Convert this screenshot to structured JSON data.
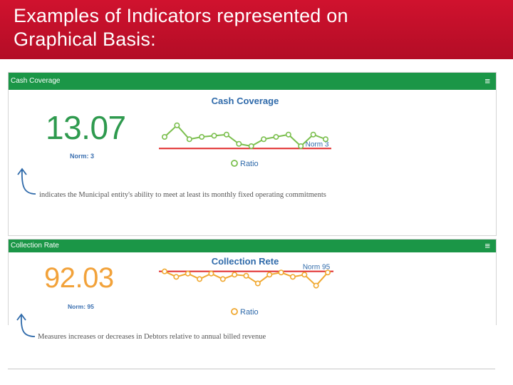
{
  "slide": {
    "title_line1": "Examples of Indicators represented on",
    "title_line2": "Graphical Basis:"
  },
  "colors": {
    "title_bg": "#c8102e",
    "panel_header": "#1b9647",
    "cash_value": "#2e9a4e",
    "collection_value": "#f2a23a",
    "norm_line": "#e02a2a",
    "cash_series": "#7bbf4e",
    "collection_series": "#f0a830",
    "label_blue": "#2f6aaa"
  },
  "panels": [
    {
      "header": "Cash Coverage",
      "menu_icon": "hamburger-icon",
      "value": "13.07",
      "norm": "Norm: 3",
      "description": "indicates the Municipal entity's ability to meet at least its monthly fixed operating commitments"
    },
    {
      "header": "Collection Rate",
      "menu_icon": "hamburger-icon",
      "value": "92.03",
      "norm": "Norm: 95",
      "description": "Measures increases or decreases in Debtors relative to annual billed revenue"
    }
  ],
  "chart_data": [
    {
      "type": "line",
      "title": "Cash Coverage",
      "series": [
        {
          "name": "Ratio",
          "values": [
            8,
            13,
            7,
            8,
            8.5,
            9,
            5,
            4,
            7,
            8,
            9,
            4,
            9,
            7
          ]
        }
      ],
      "norm_line": {
        "label": "Norm 3",
        "value": 3
      },
      "ylim": [
        0,
        16
      ],
      "grid": false,
      "legend": "bottom"
    },
    {
      "type": "line",
      "title": "Collection Rete",
      "series": [
        {
          "name": "Ratio",
          "values": [
            95,
            90,
            93,
            88,
            93,
            88,
            92,
            91,
            84,
            92,
            94,
            90,
            92,
            82,
            94
          ]
        }
      ],
      "norm_line": {
        "label": "Norm 95",
        "value": 95
      },
      "ylim": [
        70,
        100
      ],
      "grid": false,
      "legend": "bottom"
    }
  ]
}
